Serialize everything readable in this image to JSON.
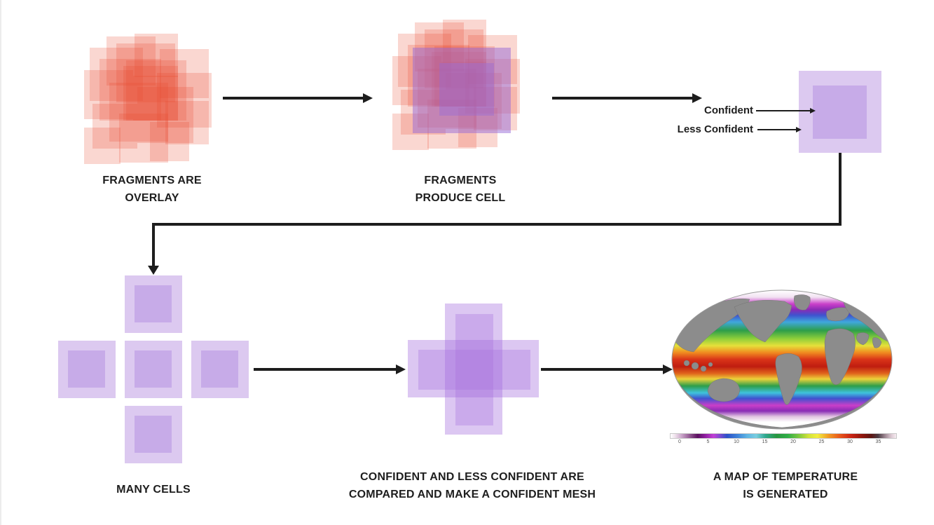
{
  "palette": {
    "background": "#ffffff",
    "arrow_color": "#1d1d1d",
    "text_color": "#1e1e1e",
    "fragment_rgba": "rgba(234,72,46,0.22)",
    "cell_outer_purple": "#dcc9f0",
    "cell_inner_purple": "#c7abe8",
    "cell_overlay_outer_rgba": "rgba(150,105,215,0.5)",
    "cell_overlay_inner_rgba": "rgba(150,105,215,0.4)",
    "mesh_outer_rgba": "rgba(164,108,220,0.38)",
    "mesh_inner_rgba": "rgba(164,108,220,0.32)",
    "map_land_gray": "#8c8c8c"
  },
  "steps": {
    "step1": {
      "caption": [
        "FRAGMENTS ARE",
        "OVERLAY"
      ]
    },
    "step2": {
      "caption": [
        "FRAGMENTS",
        "PRODUCE CELL"
      ]
    },
    "step3": {
      "caption": [
        "MANY CELLS"
      ]
    },
    "step4": {
      "caption": [
        "CONFIDENT AND LESS CONFIDENT ARE",
        "COMPARED AND MAKE A CONFIDENT MESH"
      ]
    },
    "step5": {
      "caption": [
        "A MAP OF TEMPERATURE",
        "IS GENERATED"
      ]
    }
  },
  "cell_annotations": {
    "confident_label": "Confident",
    "less_confident_label": "Less Confident"
  },
  "map": {
    "colorbar_ticks": [
      "0",
      "5",
      "10",
      "15",
      "20",
      "25",
      "30",
      "35"
    ]
  }
}
